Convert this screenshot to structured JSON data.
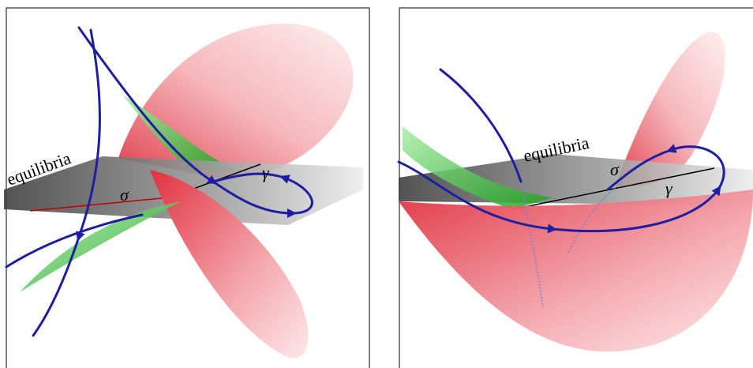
{
  "panels": [
    {
      "plane": "equilibria",
      "sigma": "σ",
      "gamma": "γ"
    },
    {
      "plane": "equilibria",
      "sigma": "σ",
      "gamma": "γ"
    }
  ]
}
